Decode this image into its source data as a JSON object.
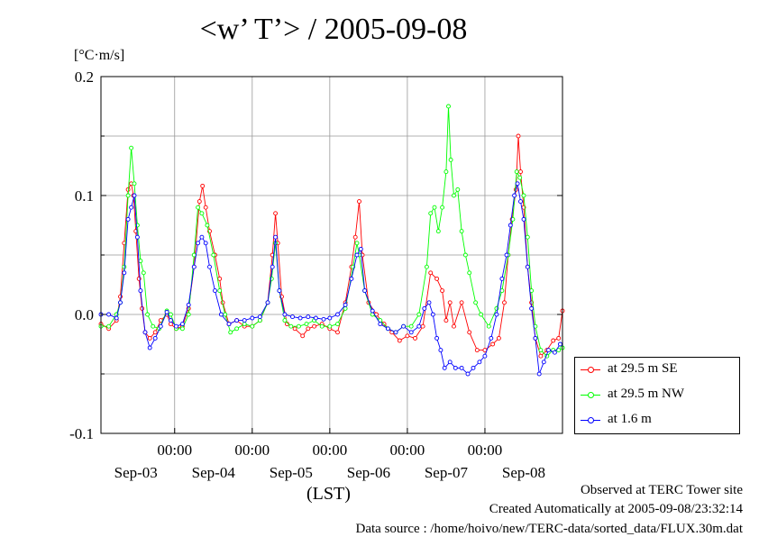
{
  "title": "<w’ T’> / 2005-09-08",
  "unit_label": "[°C·m/s]",
  "xlabel": "(LST)",
  "footer": {
    "line1": "Observed at TERC Tower site",
    "line2": "Created Automatically at 2005-09-08/23:32:14",
    "line3": "Data source : /home/hoivo/new/TERC-data/sorted_data/FLUX.30m.dat"
  },
  "chart_data": {
    "type": "line",
    "title": "<w’ T’> / 2005-09-08",
    "ylabel": "[°C·m/s]",
    "xlabel": "(LST)",
    "x_unit": "days since Sep-03 00:00 LST",
    "xlim": [
      -0.95,
      5.0
    ],
    "ylim": [
      -0.1,
      0.2
    ],
    "yticks": [
      -0.1,
      0.0,
      0.1,
      0.2
    ],
    "ytick_labels": [
      "-0.1",
      "0.0",
      "0.1",
      "0.2"
    ],
    "xticks": [
      0,
      1,
      2,
      3,
      4
    ],
    "xtick_time_labels": [
      "00:00",
      "00:00",
      "00:00",
      "00:00",
      "00:00"
    ],
    "xtick_date_labels": [
      "Sep-03",
      "Sep-04",
      "Sep-05",
      "Sep-06",
      "Sep-07",
      "Sep-08"
    ],
    "xtick_date_positions": [
      -0.5,
      0.5,
      1.5,
      2.5,
      3.5,
      4.5
    ],
    "grid": true,
    "legend_position": "right, outside",
    "series": [
      {
        "name": "at 29.5 m SE",
        "color": "#ff0000",
        "points": [
          [
            -0.95,
            -0.008
          ],
          [
            -0.85,
            -0.012
          ],
          [
            -0.75,
            -0.005
          ],
          [
            -0.7,
            0.015
          ],
          [
            -0.65,
            0.06
          ],
          [
            -0.6,
            0.105
          ],
          [
            -0.56,
            0.11
          ],
          [
            -0.53,
            0.1
          ],
          [
            -0.5,
            0.07
          ],
          [
            -0.46,
            0.03
          ],
          [
            -0.42,
            0.005
          ],
          [
            -0.38,
            -0.015
          ],
          [
            -0.32,
            -0.02
          ],
          [
            -0.25,
            -0.015
          ],
          [
            -0.18,
            -0.005
          ],
          [
            -0.1,
            0.0
          ],
          [
            -0.05,
            -0.008
          ],
          [
            0.02,
            -0.012
          ],
          [
            0.1,
            -0.01
          ],
          [
            0.18,
            0.005
          ],
          [
            0.25,
            0.04
          ],
          [
            0.32,
            0.095
          ],
          [
            0.36,
            0.108
          ],
          [
            0.4,
            0.09
          ],
          [
            0.45,
            0.07
          ],
          [
            0.52,
            0.05
          ],
          [
            0.58,
            0.03
          ],
          [
            0.62,
            0.01
          ],
          [
            0.7,
            -0.008
          ],
          [
            0.8,
            -0.005
          ],
          [
            0.9,
            -0.01
          ],
          [
            1.0,
            -0.01
          ],
          [
            1.1,
            -0.005
          ],
          [
            1.2,
            0.01
          ],
          [
            1.26,
            0.05
          ],
          [
            1.3,
            0.085
          ],
          [
            1.33,
            0.06
          ],
          [
            1.38,
            0.015
          ],
          [
            1.45,
            -0.008
          ],
          [
            1.55,
            -0.012
          ],
          [
            1.65,
            -0.018
          ],
          [
            1.72,
            -0.012
          ],
          [
            1.8,
            -0.01
          ],
          [
            1.9,
            -0.008
          ],
          [
            2.0,
            -0.012
          ],
          [
            2.1,
            -0.015
          ],
          [
            2.2,
            0.01
          ],
          [
            2.28,
            0.04
          ],
          [
            2.33,
            0.065
          ],
          [
            2.38,
            0.095
          ],
          [
            2.42,
            0.05
          ],
          [
            2.5,
            0.01
          ],
          [
            2.6,
            0.0
          ],
          [
            2.7,
            -0.008
          ],
          [
            2.8,
            -0.015
          ],
          [
            2.9,
            -0.022
          ],
          [
            3.0,
            -0.018
          ],
          [
            3.1,
            -0.02
          ],
          [
            3.2,
            -0.01
          ],
          [
            3.3,
            0.035
          ],
          [
            3.38,
            0.03
          ],
          [
            3.45,
            0.02
          ],
          [
            3.5,
            -0.005
          ],
          [
            3.55,
            0.01
          ],
          [
            3.6,
            -0.01
          ],
          [
            3.7,
            0.01
          ],
          [
            3.8,
            -0.015
          ],
          [
            3.9,
            -0.03
          ],
          [
            4.0,
            -0.03
          ],
          [
            4.1,
            -0.025
          ],
          [
            4.18,
            -0.02
          ],
          [
            4.25,
            0.01
          ],
          [
            4.3,
            0.05
          ],
          [
            4.35,
            0.08
          ],
          [
            4.4,
            0.105
          ],
          [
            4.43,
            0.15
          ],
          [
            4.46,
            0.12
          ],
          [
            4.5,
            0.09
          ],
          [
            4.55,
            0.04
          ],
          [
            4.6,
            0.01
          ],
          [
            4.65,
            -0.02
          ],
          [
            4.72,
            -0.035
          ],
          [
            4.8,
            -0.03
          ],
          [
            4.88,
            -0.022
          ],
          [
            4.95,
            -0.02
          ],
          [
            5.0,
            0.003
          ]
        ]
      },
      {
        "name": "at 29.5 m NW",
        "color": "#00ff00",
        "points": [
          [
            -0.95,
            -0.01
          ],
          [
            -0.85,
            -0.01
          ],
          [
            -0.75,
            0.0
          ],
          [
            -0.7,
            0.01
          ],
          [
            -0.65,
            0.04
          ],
          [
            -0.6,
            0.1
          ],
          [
            -0.56,
            0.14
          ],
          [
            -0.52,
            0.11
          ],
          [
            -0.48,
            0.075
          ],
          [
            -0.44,
            0.045
          ],
          [
            -0.4,
            0.035
          ],
          [
            -0.35,
            0.0
          ],
          [
            -0.28,
            -0.01
          ],
          [
            -0.2,
            -0.012
          ],
          [
            -0.1,
            0.003
          ],
          [
            -0.05,
            0.0
          ],
          [
            0.02,
            -0.012
          ],
          [
            0.1,
            -0.012
          ],
          [
            0.18,
            0.0
          ],
          [
            0.25,
            0.05
          ],
          [
            0.3,
            0.09
          ],
          [
            0.35,
            0.085
          ],
          [
            0.42,
            0.075
          ],
          [
            0.5,
            0.05
          ],
          [
            0.58,
            0.02
          ],
          [
            0.65,
            0.0
          ],
          [
            0.72,
            -0.015
          ],
          [
            0.8,
            -0.012
          ],
          [
            0.9,
            -0.008
          ],
          [
            1.0,
            -0.01
          ],
          [
            1.1,
            -0.005
          ],
          [
            1.2,
            0.01
          ],
          [
            1.25,
            0.03
          ],
          [
            1.3,
            0.06
          ],
          [
            1.35,
            0.02
          ],
          [
            1.42,
            -0.005
          ],
          [
            1.5,
            -0.01
          ],
          [
            1.6,
            -0.01
          ],
          [
            1.7,
            -0.008
          ],
          [
            1.8,
            -0.005
          ],
          [
            1.9,
            -0.01
          ],
          [
            2.0,
            -0.01
          ],
          [
            2.1,
            -0.008
          ],
          [
            2.2,
            0.005
          ],
          [
            2.3,
            0.04
          ],
          [
            2.35,
            0.06
          ],
          [
            2.38,
            0.05
          ],
          [
            2.45,
            0.02
          ],
          [
            2.55,
            0.0
          ],
          [
            2.65,
            -0.005
          ],
          [
            2.75,
            -0.012
          ],
          [
            2.85,
            -0.015
          ],
          [
            2.95,
            -0.01
          ],
          [
            3.05,
            -0.01
          ],
          [
            3.15,
            0.0
          ],
          [
            3.25,
            0.04
          ],
          [
            3.3,
            0.085
          ],
          [
            3.35,
            0.09
          ],
          [
            3.4,
            0.07
          ],
          [
            3.45,
            0.09
          ],
          [
            3.5,
            0.12
          ],
          [
            3.53,
            0.175
          ],
          [
            3.56,
            0.13
          ],
          [
            3.6,
            0.1
          ],
          [
            3.65,
            0.105
          ],
          [
            3.7,
            0.07
          ],
          [
            3.75,
            0.05
          ],
          [
            3.8,
            0.035
          ],
          [
            3.88,
            0.01
          ],
          [
            3.95,
            0.0
          ],
          [
            4.05,
            -0.01
          ],
          [
            4.15,
            0.005
          ],
          [
            4.22,
            0.02
          ],
          [
            4.3,
            0.05
          ],
          [
            4.36,
            0.08
          ],
          [
            4.41,
            0.12
          ],
          [
            4.45,
            0.115
          ],
          [
            4.5,
            0.1
          ],
          [
            4.55,
            0.065
          ],
          [
            4.6,
            0.02
          ],
          [
            4.65,
            -0.01
          ],
          [
            4.72,
            -0.03
          ],
          [
            4.8,
            -0.035
          ],
          [
            4.88,
            -0.03
          ],
          [
            4.95,
            -0.03
          ],
          [
            5.0,
            -0.028
          ]
        ]
      },
      {
        "name": "at 1.6 m",
        "color": "#0000ff",
        "points": [
          [
            -0.95,
            0.0
          ],
          [
            -0.85,
            0.0
          ],
          [
            -0.75,
            -0.003
          ],
          [
            -0.7,
            0.01
          ],
          [
            -0.65,
            0.035
          ],
          [
            -0.6,
            0.08
          ],
          [
            -0.56,
            0.09
          ],
          [
            -0.52,
            0.1
          ],
          [
            -0.48,
            0.065
          ],
          [
            -0.44,
            0.02
          ],
          [
            -0.38,
            -0.015
          ],
          [
            -0.32,
            -0.028
          ],
          [
            -0.25,
            -0.02
          ],
          [
            -0.18,
            -0.01
          ],
          [
            -0.1,
            0.002
          ],
          [
            -0.05,
            -0.005
          ],
          [
            0.02,
            -0.01
          ],
          [
            0.1,
            -0.008
          ],
          [
            0.18,
            0.008
          ],
          [
            0.25,
            0.04
          ],
          [
            0.3,
            0.06
          ],
          [
            0.35,
            0.065
          ],
          [
            0.4,
            0.06
          ],
          [
            0.45,
            0.04
          ],
          [
            0.52,
            0.02
          ],
          [
            0.6,
            0.0
          ],
          [
            0.7,
            -0.008
          ],
          [
            0.8,
            -0.005
          ],
          [
            0.9,
            -0.005
          ],
          [
            1.0,
            -0.003
          ],
          [
            1.1,
            -0.002
          ],
          [
            1.2,
            0.01
          ],
          [
            1.26,
            0.04
          ],
          [
            1.3,
            0.065
          ],
          [
            1.35,
            0.02
          ],
          [
            1.42,
            0.0
          ],
          [
            1.52,
            -0.002
          ],
          [
            1.62,
            -0.003
          ],
          [
            1.72,
            -0.002
          ],
          [
            1.82,
            -0.003
          ],
          [
            1.92,
            -0.004
          ],
          [
            2.0,
            -0.003
          ],
          [
            2.1,
            0.0
          ],
          [
            2.2,
            0.008
          ],
          [
            2.28,
            0.03
          ],
          [
            2.35,
            0.05
          ],
          [
            2.4,
            0.055
          ],
          [
            2.45,
            0.02
          ],
          [
            2.55,
            0.003
          ],
          [
            2.65,
            -0.008
          ],
          [
            2.75,
            -0.012
          ],
          [
            2.85,
            -0.015
          ],
          [
            2.95,
            -0.01
          ],
          [
            3.05,
            -0.015
          ],
          [
            3.15,
            -0.01
          ],
          [
            3.22,
            0.005
          ],
          [
            3.28,
            0.01
          ],
          [
            3.33,
            0.0
          ],
          [
            3.38,
            -0.02
          ],
          [
            3.43,
            -0.03
          ],
          [
            3.48,
            -0.045
          ],
          [
            3.55,
            -0.04
          ],
          [
            3.62,
            -0.045
          ],
          [
            3.7,
            -0.045
          ],
          [
            3.78,
            -0.05
          ],
          [
            3.85,
            -0.045
          ],
          [
            3.93,
            -0.04
          ],
          [
            4.0,
            -0.035
          ],
          [
            4.08,
            -0.02
          ],
          [
            4.15,
            0.0
          ],
          [
            4.22,
            0.03
          ],
          [
            4.28,
            0.05
          ],
          [
            4.33,
            0.075
          ],
          [
            4.38,
            0.1
          ],
          [
            4.42,
            0.11
          ],
          [
            4.46,
            0.095
          ],
          [
            4.5,
            0.08
          ],
          [
            4.55,
            0.04
          ],
          [
            4.6,
            0.005
          ],
          [
            4.65,
            -0.02
          ],
          [
            4.7,
            -0.05
          ],
          [
            4.76,
            -0.04
          ],
          [
            4.82,
            -0.03
          ],
          [
            4.9,
            -0.032
          ],
          [
            4.97,
            -0.025
          ]
        ]
      }
    ]
  }
}
